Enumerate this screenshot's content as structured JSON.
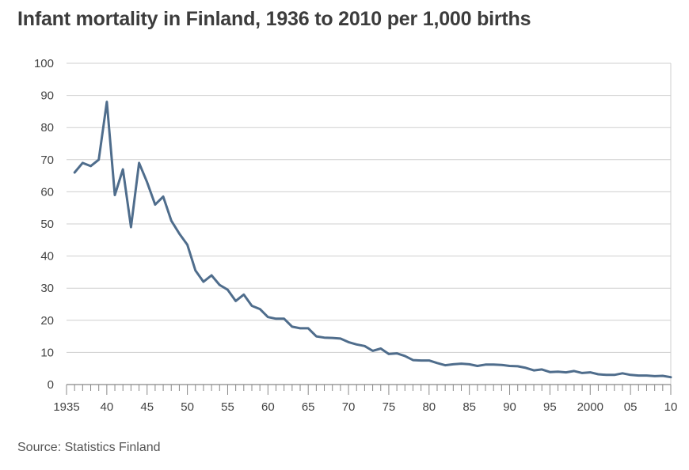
{
  "title": "Infant mortality in Finland, 1936 to 2010 per 1,000 births",
  "source": "Source: Statistics Finland",
  "colors": {
    "line": "#4f6d8c",
    "grid": "#cfcfcf",
    "axis": "#888888",
    "background": "#ffffff"
  },
  "chart_data": {
    "type": "line",
    "title": "Infant mortality in Finland, 1936 to 2010 per 1,000 births",
    "xlabel": "",
    "ylabel": "",
    "xlim": [
      1935,
      2010
    ],
    "ylim": [
      0,
      100
    ],
    "grid": true,
    "legend": "none",
    "y_ticks": [
      0,
      10,
      20,
      30,
      40,
      50,
      60,
      70,
      80,
      90,
      100
    ],
    "y_tick_labels": [
      "0",
      "10",
      "20",
      "30",
      "40",
      "50",
      "60",
      "70",
      "80",
      "90",
      "100"
    ],
    "x_ticks": [
      1935,
      1940,
      1945,
      1950,
      1955,
      1960,
      1965,
      1970,
      1975,
      1980,
      1985,
      1990,
      1995,
      2000,
      2005,
      2010
    ],
    "x_tick_labels": [
      "1935",
      "40",
      "45",
      "50",
      "55",
      "60",
      "65",
      "70",
      "75",
      "80",
      "85",
      "90",
      "95",
      "2000",
      "05",
      "10"
    ],
    "series": [
      {
        "x": [
          1936,
          1937,
          1938,
          1939,
          1940,
          1941,
          1942,
          1943,
          1944,
          1945,
          1946,
          1947,
          1948,
          1949,
          1950,
          1951,
          1952,
          1953,
          1954,
          1955,
          1956,
          1957,
          1958,
          1959,
          1960,
          1961,
          1962,
          1963,
          1964,
          1965,
          1966,
          1967,
          1968,
          1969,
          1970,
          1971,
          1972,
          1973,
          1974,
          1975,
          1976,
          1977,
          1978,
          1979,
          1980,
          1981,
          1982,
          1983,
          1984,
          1985,
          1986,
          1987,
          1988,
          1989,
          1990,
          1991,
          1992,
          1993,
          1994,
          1995,
          1996,
          1997,
          1998,
          1999,
          2000,
          2001,
          2002,
          2003,
          2004,
          2005,
          2006,
          2007,
          2008,
          2009,
          2010
        ],
        "values": [
          66,
          69,
          68,
          70,
          88,
          59,
          67,
          49,
          69,
          63,
          56,
          58.5,
          51,
          47,
          43.5,
          35.5,
          32,
          34,
          31,
          29.5,
          26,
          28,
          24.5,
          23.5,
          21,
          20.5,
          20.5,
          18,
          17.5,
          17.5,
          15,
          14.6,
          14.5,
          14.3,
          13.2,
          12.5,
          12,
          10.5,
          11.2,
          9.5,
          9.7,
          8.9,
          7.6,
          7.5,
          7.5,
          6.7,
          6,
          6.3,
          6.5,
          6.3,
          5.8,
          6.2,
          6.2,
          6.1,
          5.8,
          5.7,
          5.2,
          4.4,
          4.7,
          3.9,
          4,
          3.8,
          4.2,
          3.6,
          3.8,
          3.2,
          3,
          3,
          3.5,
          3,
          2.8,
          2.8,
          2.6,
          2.7,
          2.3
        ]
      }
    ]
  }
}
